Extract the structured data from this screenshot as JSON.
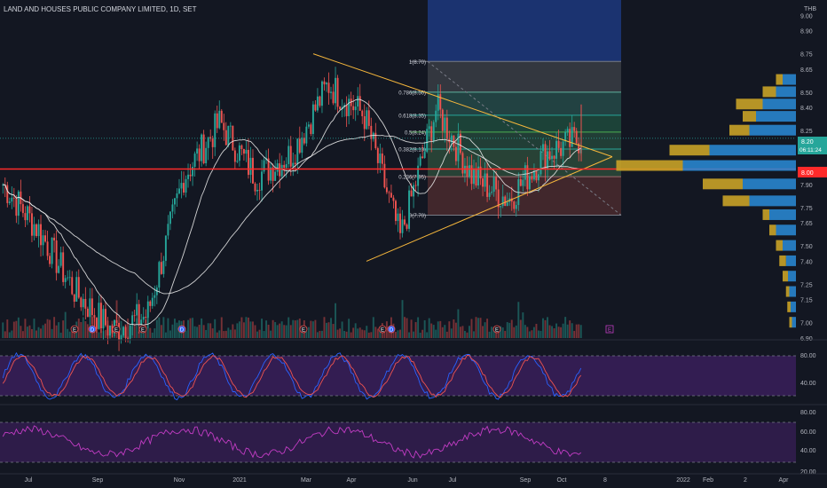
{
  "header": {
    "title": "LAND AND HOUSES PUBLIC COMPANY LIMITED, 1D, SET"
  },
  "currency": "THB",
  "price_axis": {
    "ticks": [
      "9.00",
      "8.90",
      "8.75",
      "8.65",
      "8.50",
      "8.40",
      "8.25",
      "8.00",
      "7.90",
      "7.75",
      "7.65",
      "7.50",
      "7.40",
      "7.25",
      "7.15",
      "7.00",
      "6.90"
    ]
  },
  "current_price_tag": {
    "price": "8.20",
    "countdown": "06:11:24"
  },
  "level_tag": "8.00",
  "oscillator1_ticks": [
    "80.00",
    "40.00"
  ],
  "oscillator2_ticks": [
    "80.00",
    "60.00",
    "40.00",
    "20.00"
  ],
  "time_axis": [
    "Jul",
    "Sep",
    "Nov",
    "2021",
    "Mar",
    "Apr",
    "Jun",
    "Jul",
    "Sep",
    "Oct",
    "8",
    "2022",
    "Feb",
    "2",
    "Apr"
  ],
  "fib_levels": [
    {
      "label": "1(8.70)",
      "price": 8.7
    },
    {
      "label": "0.786(8.50)",
      "price": 8.5
    },
    {
      "label": "0.618(8.35)",
      "price": 8.35
    },
    {
      "label": "0.5(8.24)",
      "price": 8.24
    },
    {
      "label": "0.382(8.13)",
      "price": 8.13
    },
    {
      "label": "0.236(7.95)",
      "price": 7.95
    },
    {
      "label": "0(7.70)",
      "price": 7.7
    }
  ],
  "event_markers": [
    "E",
    "D",
    "E",
    "E",
    "D",
    "E",
    "E",
    "D",
    "E"
  ],
  "earnings_upcoming": "E",
  "colors": {
    "background": "#131722",
    "up": "#26a69a",
    "down": "#ef5350",
    "resistance": "#ff2a2a",
    "triangle": "#f6b73c",
    "ma": "#e8e8e8",
    "osc_bg": "#3a1f5a",
    "osc_k": "#2962ff",
    "osc_d": "#ef5350",
    "rsi": "#c23cc4",
    "vp_up": "#2a8cd8",
    "vp_down": "#c9a227"
  },
  "chart_data": {
    "type": "candlestick",
    "title": "LAND AND HOUSES PUBLIC COMPANY LIMITED, 1D, SET",
    "y_range": [
      6.9,
      9.1
    ],
    "x_labels": [
      "Jul",
      "Sep",
      "Nov",
      "2021",
      "Mar",
      "Apr",
      "Jun",
      "Jul",
      "Sep",
      "Oct"
    ],
    "close_path": [
      [
        "Jul",
        7.9
      ],
      [
        "Aug",
        7.6
      ],
      [
        "Sep",
        7.2
      ],
      [
        "Oct",
        6.95
      ],
      [
        "Nov",
        7.05
      ],
      [
        "Dec",
        7.95
      ],
      [
        "Jan",
        8.3
      ],
      [
        "Feb",
        7.95
      ],
      [
        "Mar",
        8.1
      ],
      [
        "Apr",
        8.55
      ],
      [
        "May",
        8.35
      ],
      [
        "May-late",
        7.55
      ],
      [
        "Jun",
        8.4
      ],
      [
        "Jul",
        7.95
      ],
      [
        "Aug",
        7.8
      ],
      [
        "Sep",
        8.1
      ],
      [
        "Oct",
        8.2
      ]
    ],
    "current_price": 8.2,
    "resistance_level": 8.0,
    "fibonacci_retracement": {
      "high": 8.7,
      "low": 7.7
    },
    "triangle": {
      "upper_start": 8.75,
      "lower_start": 7.4
    },
    "volume_profile": [
      {
        "price": 8.58,
        "up": 2,
        "down": 1
      },
      {
        "price": 8.5,
        "up": 3,
        "down": 2
      },
      {
        "price": 8.42,
        "up": 5,
        "down": 4
      },
      {
        "price": 8.34,
        "up": 6,
        "down": 2
      },
      {
        "price": 8.25,
        "up": 7,
        "down": 3
      },
      {
        "price": 8.12,
        "up": 13,
        "down": 6
      },
      {
        "price": 8.02,
        "up": 17,
        "down": 10
      },
      {
        "price": 7.9,
        "up": 8,
        "down": 6
      },
      {
        "price": 7.79,
        "up": 7,
        "down": 4
      },
      {
        "price": 7.7,
        "up": 4,
        "down": 1
      },
      {
        "price": 7.6,
        "up": 3,
        "down": 1
      },
      {
        "price": 7.5,
        "up": 2,
        "down": 1
      },
      {
        "price": 7.4,
        "up": 1.5,
        "down": 1
      },
      {
        "price": 7.3,
        "up": 1.2,
        "down": 0.8
      },
      {
        "price": 7.2,
        "up": 1,
        "down": 0.5
      },
      {
        "price": 7.1,
        "up": 0.8,
        "down": 0.5
      },
      {
        "price": 7.0,
        "up": 0.6,
        "down": 0.4
      }
    ]
  }
}
